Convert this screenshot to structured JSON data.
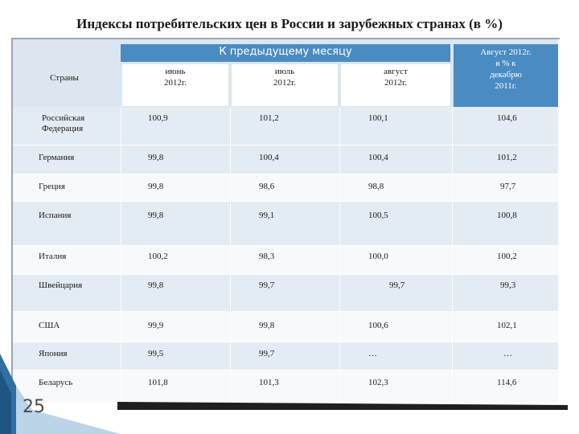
{
  "title": "Индексы потребительских цен в России и зарубежных странах (в %)",
  "header": {
    "group_label": "К предыдущему месяцу",
    "countries_label": "Страны",
    "june": [
      "июнь",
      "2012г."
    ],
    "july": [
      "июль",
      "2012г."
    ],
    "august": [
      "август",
      "2012г."
    ],
    "aug_dec": [
      "Август 2012г.",
      "в % к",
      "декабрю",
      "2011г."
    ]
  },
  "rows": [
    {
      "country": [
        "Российская",
        "Федерация"
      ],
      "june": "100,9",
      "july": "101,2",
      "august": "100,1",
      "aug_dec": "104,6"
    },
    {
      "country": [
        "Германия"
      ],
      "june": "99,8",
      "july": "100,4",
      "august": "100,4",
      "aug_dec": "101,2"
    },
    {
      "country": [
        "Греция"
      ],
      "june": "99,8",
      "july": "98,6",
      "august": "98,8",
      "aug_dec": "97,7"
    },
    {
      "country": [
        "Испания"
      ],
      "june": "99,8",
      "july": "99,1",
      "august": "100,5",
      "aug_dec": "100,8"
    },
    {
      "country": [
        "Италия"
      ],
      "june": "100,2",
      "july": "98,3",
      "august": "100,0",
      "aug_dec": "100,2"
    },
    {
      "country": [
        "Швейцария"
      ],
      "june": "99,8",
      "july": "99,7",
      "august": "99,7",
      "aug_dec": "99,3"
    },
    {
      "country": [
        "США"
      ],
      "june": "99,9",
      "july": "99,8",
      "august": "100,6",
      "aug_dec": "102,1"
    },
    {
      "country": [
        "Япония"
      ],
      "june": "99,5",
      "july": "99,7",
      "august": "…",
      "aug_dec": "…"
    },
    {
      "country": [
        "Беларусь"
      ],
      "june": "101,8",
      "july": "101,3",
      "august": "102,3",
      "aug_dec": "114,6"
    }
  ],
  "page_number": "25",
  "colors": {
    "header_blue": "#4a8bc2",
    "row_light": "#e3ebf3",
    "row_white": "#f7f9fb"
  }
}
